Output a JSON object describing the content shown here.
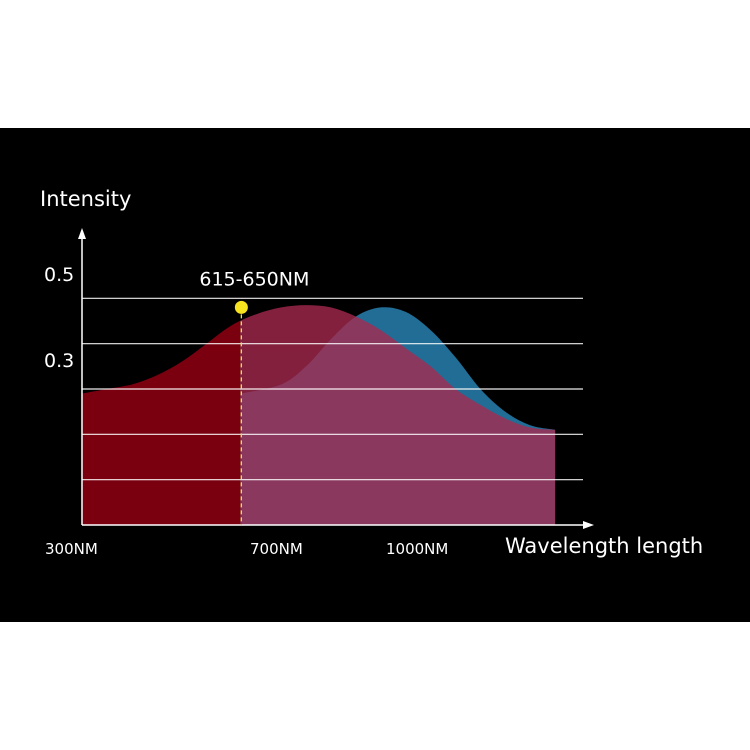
{
  "chart_data": {
    "type": "area",
    "title": "",
    "ylabel": "Intensity",
    "xlabel": "Wavelength length",
    "x_ticks": [
      "300NM",
      "700NM",
      "1000NM"
    ],
    "y_ticks": [
      {
        "value": 0.5,
        "label": "0.5"
      },
      {
        "value": 0.3,
        "label": "0.3"
      }
    ],
    "ylim": [
      0,
      0.6
    ],
    "x_range": [
      300,
      1300
    ],
    "grid": true,
    "gridlines": [
      0.1,
      0.2,
      0.3,
      0.4,
      0.5
    ],
    "annotation": {
      "label": "615-650NM",
      "x": 620,
      "y": 0.48
    },
    "series": [
      {
        "color": "#7a0010",
        "values": [
          [
            300,
            0.29
          ],
          [
            350,
            0.3
          ],
          [
            400,
            0.31
          ],
          [
            450,
            0.33
          ],
          [
            500,
            0.36
          ],
          [
            550,
            0.4
          ],
          [
            600,
            0.44
          ],
          [
            650,
            0.465
          ],
          [
            700,
            0.48
          ],
          [
            750,
            0.485
          ],
          [
            800,
            0.48
          ],
          [
            850,
            0.46
          ],
          [
            900,
            0.43
          ],
          [
            950,
            0.39
          ],
          [
            1000,
            0.35
          ],
          [
            1050,
            0.3
          ],
          [
            1100,
            0.265
          ],
          [
            1150,
            0.235
          ],
          [
            1200,
            0.215
          ],
          [
            1250,
            0.21
          ]
        ]
      },
      {
        "color": "#216d96",
        "values": [
          [
            620,
            0.29
          ],
          [
            700,
            0.31
          ],
          [
            750,
            0.35
          ],
          [
            800,
            0.41
          ],
          [
            850,
            0.46
          ],
          [
            900,
            0.48
          ],
          [
            950,
            0.47
          ],
          [
            1000,
            0.43
          ],
          [
            1050,
            0.37
          ],
          [
            1100,
            0.3
          ],
          [
            1150,
            0.25
          ],
          [
            1200,
            0.22
          ],
          [
            1250,
            0.21
          ]
        ]
      }
    ]
  }
}
